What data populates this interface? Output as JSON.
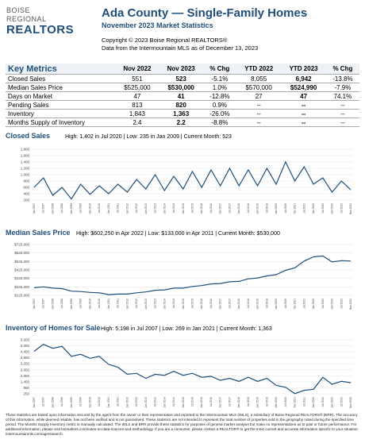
{
  "header": {
    "logo": [
      "BOISE",
      "REGIONAL",
      "REALTORS"
    ],
    "title": "Ada County — Single-Family Homes",
    "subtitle": "November 2023 Market Statistics",
    "copyright": "Copyright © 2023 Boise Regional REALTORS®",
    "source": "Data from the Intermountain MLS as of December 13, 2023"
  },
  "table": {
    "headers": [
      "Key Metrics",
      "Nov 2022",
      "Nov 2023",
      "% Chg",
      "YTD 2022",
      "YTD 2023",
      "% Chg"
    ],
    "rows": [
      [
        "Closed Sales",
        "551",
        "523",
        "-5.1%",
        "8,055",
        "6,942",
        "-13.8%"
      ],
      [
        "Median Sales Price",
        "$525,000",
        "$530,000",
        "1.0%",
        "$570,000",
        "$524,990",
        "-7.9%"
      ],
      [
        "Days on Market",
        "47",
        "41",
        "-12.8%",
        "27",
        "47",
        "74.1%"
      ],
      [
        "Pending Sales",
        "813",
        "820",
        "0.9%",
        "--",
        "--",
        "--"
      ],
      [
        "Inventory",
        "1,843",
        "1,363",
        "-26.0%",
        "--",
        "--",
        "--"
      ],
      [
        "Months Supply of Inventory",
        "2.4",
        "2.2",
        "-8.8%",
        "--",
        "--",
        "--"
      ]
    ]
  },
  "chart_data": [
    {
      "type": "line",
      "title": "Closed Sales",
      "subtitle": "High: 1,402 in Jul 2020 | Low: 235 in Jan 2009 | Current Month: 523",
      "color": "#1f4e79",
      "categories": [
        "Jan 2007",
        "Jul 2007",
        "Jan 2008",
        "Jul 2008",
        "Jan 2009",
        "Jul 2009",
        "Jan 2010",
        "Jul 2010",
        "Jan 2011",
        "Jul 2011",
        "Jan 2012",
        "Jul 2012",
        "Jan 2013",
        "Jul 2013",
        "Jan 2014",
        "Jul 2014",
        "Jan 2015",
        "Jul 2015",
        "Jan 2016",
        "Jul 2016",
        "Jan 2017",
        "Jul 2017",
        "Jan 2018",
        "Jul 2018",
        "Jan 2019",
        "Jul 2019",
        "Jan 2020",
        "Jul 2020",
        "Jan 2021",
        "Jul 2021",
        "Jan 2022",
        "Jul 2022",
        "Jan 2023",
        "Jul 2023",
        "Nov 2023"
      ],
      "values": [
        600,
        900,
        350,
        600,
        235,
        700,
        380,
        650,
        400,
        700,
        450,
        850,
        550,
        1000,
        500,
        950,
        550,
        1100,
        600,
        1150,
        650,
        1200,
        650,
        1150,
        650,
        1200,
        700,
        1402,
        800,
        1250,
        700,
        900,
        450,
        800,
        523
      ],
      "ylim": [
        200,
        1800
      ],
      "yticks": [
        200,
        400,
        600,
        800,
        {
          "value": 1000,
          "label": "1,000"
        },
        {
          "value": 1200,
          "label": "1,200"
        },
        {
          "value": 1400,
          "label": "1,400"
        },
        {
          "value": 1600,
          "label": "1,600"
        },
        {
          "value": 1800,
          "label": "1,800"
        }
      ]
    },
    {
      "type": "line",
      "title": "Median Sales Price",
      "subtitle": "High: $602,250 in Apr 2022 | Low: $133,000 in Apr 2011 | Current Month: $530,000",
      "color": "#1f4e79",
      "categories": [
        "Jan 2007",
        "Jul 2007",
        "Jan 2008",
        "Jul 2008",
        "Jan 2009",
        "Jul 2009",
        "Jan 2010",
        "Jul 2010",
        "Jan 2011",
        "Jul 2011",
        "Jan 2012",
        "Jul 2012",
        "Jan 2013",
        "Jul 2013",
        "Jan 2014",
        "Jul 2014",
        "Jan 2015",
        "Jul 2015",
        "Jan 2016",
        "Jul 2016",
        "Jan 2017",
        "Jul 2017",
        "Jan 2018",
        "Jul 2018",
        "Jan 2019",
        "Jul 2019",
        "Jan 2020",
        "Jul 2020",
        "Jan 2021",
        "Jul 2021",
        "Jan 2022",
        "Jul 2022",
        "Jan 2023",
        "Jul 2023",
        "Nov 2023"
      ],
      "values": [
        215000,
        225000,
        210000,
        205000,
        175000,
        170000,
        160000,
        155000,
        133000,
        140000,
        140000,
        155000,
        165000,
        185000,
        190000,
        210000,
        210000,
        230000,
        240000,
        260000,
        265000,
        285000,
        290000,
        320000,
        330000,
        355000,
        370000,
        420000,
        450000,
        530000,
        580000,
        590000,
        520000,
        535000,
        530000
      ],
      "ylim": [
        125000,
        725000
      ],
      "yticks": [
        {
          "value": 125000,
          "label": "$125,000"
        },
        {
          "value": 225000,
          "label": "$225,000"
        },
        {
          "value": 325000,
          "label": "$325,000"
        },
        {
          "value": 425000,
          "label": "$425,000"
        },
        {
          "value": 525000,
          "label": "$525,000"
        },
        {
          "value": 625000,
          "label": "$625,000"
        },
        {
          "value": 725000,
          "label": "$725,000"
        }
      ]
    },
    {
      "type": "line",
      "title": "Inventory of Homes for Sale",
      "subtitle": "High: 5,198 in Jul 2007 | Low: 269 in Jan 2021 | Current Month: 1,363",
      "color": "#1f4e79",
      "categories": [
        "Jan 2007",
        "Jul 2007",
        "Jan 2008",
        "Jul 2008",
        "Jan 2009",
        "Jul 2009",
        "Jan 2010",
        "Jul 2010",
        "Jan 2011",
        "Jul 2011",
        "Jan 2012",
        "Jul 2012",
        "Jan 2013",
        "Jul 2013",
        "Jan 2014",
        "Jul 2014",
        "Jan 2015",
        "Jul 2015",
        "Jan 2016",
        "Jul 2016",
        "Jan 2017",
        "Jul 2017",
        "Jan 2018",
        "Jul 2018",
        "Jan 2019",
        "Jul 2019",
        "Jan 2020",
        "Jul 2020",
        "Jan 2021",
        "Jul 2021",
        "Jan 2022",
        "Jul 2022",
        "Jan 2023",
        "Jul 2023",
        "Nov 2023"
      ],
      "values": [
        4500,
        5198,
        4800,
        5000,
        4000,
        4200,
        3800,
        4000,
        3200,
        2900,
        2200,
        2300,
        1800,
        2200,
        2100,
        2500,
        2100,
        2300,
        1900,
        2000,
        1600,
        1800,
        1500,
        1900,
        1500,
        1800,
        1100,
        900,
        269,
        600,
        700,
        1900,
        1200,
        1500,
        1363
      ],
      "ylim": [
        250,
        5650
      ],
      "yticks": [
        250,
        850,
        {
          "value": 1450,
          "label": "1,450"
        },
        {
          "value": 2050,
          "label": "2,050"
        },
        {
          "value": 2650,
          "label": "2,650"
        },
        {
          "value": 3250,
          "label": "3,250"
        },
        {
          "value": 3850,
          "label": "3,850"
        },
        {
          "value": 4450,
          "label": "4,450"
        },
        {
          "value": 5050,
          "label": "5,050"
        },
        {
          "value": 5650,
          "label": "5,650"
        }
      ]
    }
  ],
  "footer": "These statistics are based upon information secured by the agent from the owner or their representative and reported to the Intermountain MLS (IMLS), a subsidiary of Boise Regional REALTORS® (BRR). The accuracy of this information, while deemed reliable, has not been verified and is not guaranteed. These statistics are not intended to represent the total number of properties sold in the geography noted during the specified time period. The Months Supply Inventory metric is manually calculated. The IMLS and BRR provide these statistics for purposes of general market analysis but make no representations as to past or future performance. For additional information, please visit boirealtors.com/notes-on-data-sources-and-methodology. If you are a consumer, please contact a REALTOR® to get the most current and accurate information specific to your situation: intermountainmls.com/agentsearch."
}
